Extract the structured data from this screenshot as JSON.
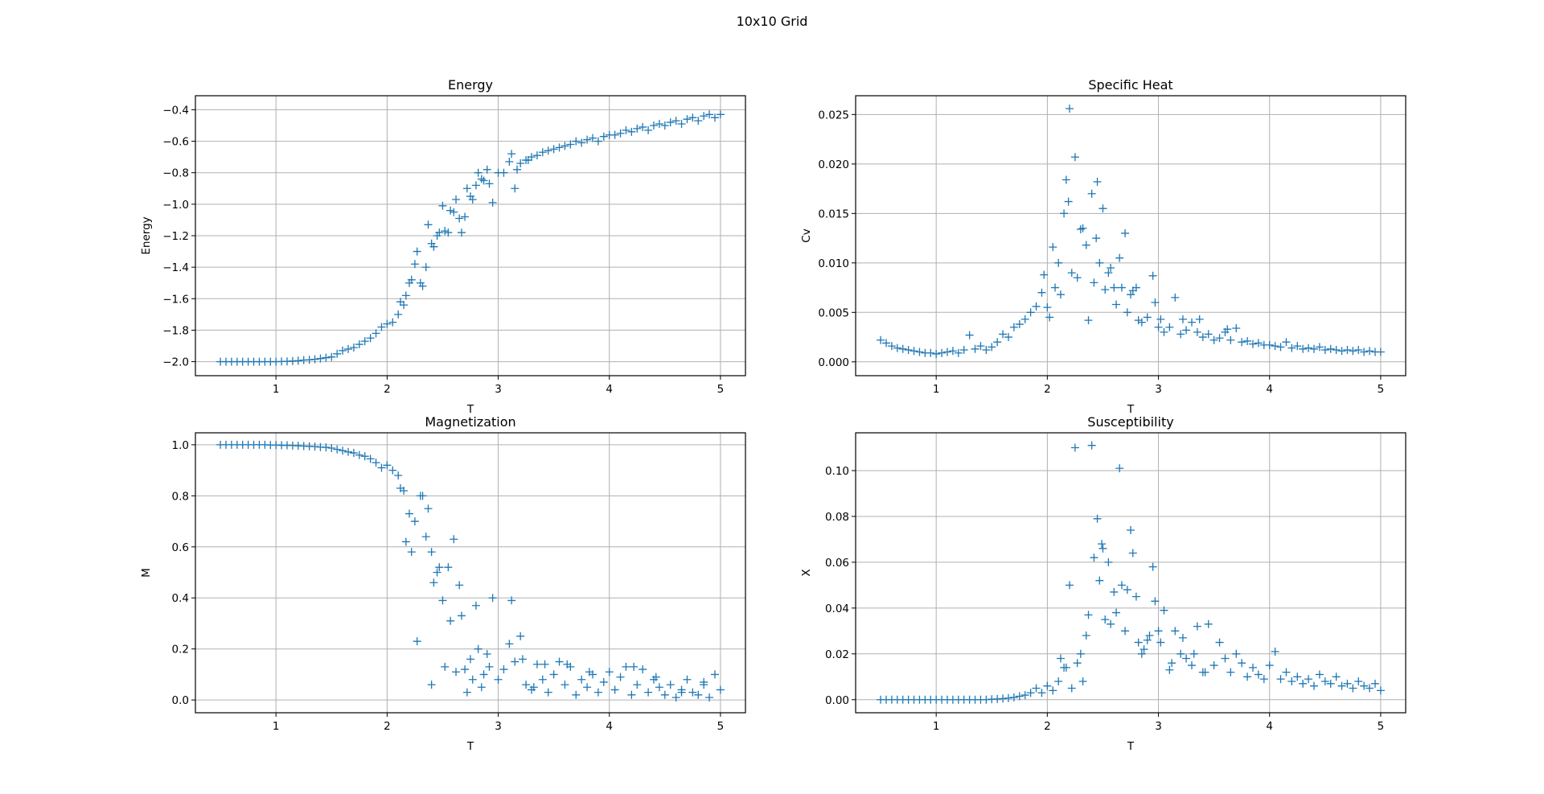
{
  "figure": {
    "suptitle": "10x10 Grid",
    "marker_color": "#1f77b4",
    "grid_color": "#b0b0b0",
    "marker": "plus"
  },
  "chart_data": [
    {
      "type": "scatter",
      "title": "Energy",
      "xlabel": "T",
      "ylabel": "Energy",
      "xlim": [
        0.275,
        5.225
      ],
      "ylim": [
        -2.089,
        -0.311
      ],
      "grid": true,
      "xticks": [
        1,
        2,
        3,
        4,
        5
      ],
      "xtick_labels": [
        "1",
        "2",
        "3",
        "4",
        "5"
      ],
      "yticks": [
        -2.0,
        -1.8,
        -1.6,
        -1.4,
        -1.2,
        -1.0,
        -0.8,
        -0.6,
        -0.4
      ],
      "ytick_labels": [
        "−2.0",
        "−1.8",
        "−1.6",
        "−1.4",
        "−1.2",
        "−1.0",
        "−0.8",
        "−0.6",
        "−0.4"
      ],
      "y": [
        -2.0,
        -2.0,
        -2.0,
        -2.0,
        -2.0,
        -2.0,
        -2.0,
        -2.0,
        -2.0,
        -2.0,
        -2.0,
        -1.999,
        -1.998,
        -1.996,
        -1.994,
        -1.99,
        -1.988,
        -1.985,
        -1.98,
        -1.975,
        -1.97,
        -1.95,
        -1.93,
        -1.92,
        -1.91,
        -1.89,
        -1.87,
        -1.85,
        -1.82,
        -1.78,
        -1.76,
        -1.75,
        -1.7,
        -1.64,
        -1.5,
        -1.38,
        -1.5,
        -1.4,
        -1.25,
        -1.2,
        -1.01,
        -1.18,
        -1.05,
        -1.09,
        -1.08,
        -0.95,
        -0.88,
        -0.84,
        -0.78,
        -0.99,
        -0.8,
        -0.8,
        -0.73,
        -0.9,
        -0.74,
        -0.72,
        -0.7,
        -0.69,
        -0.67,
        -0.66,
        -0.65,
        -0.64,
        -0.63,
        -0.62,
        -0.6,
        -0.61,
        -0.59,
        -0.58,
        -0.6,
        -0.57,
        -0.56,
        -0.56,
        -0.55,
        -0.53,
        -0.54,
        -0.52,
        -0.51,
        -0.53,
        -0.5,
        -0.49,
        -0.5,
        -0.48,
        -0.47,
        -0.49,
        -0.46,
        -0.45,
        -0.47,
        -0.44,
        -0.43,
        -0.45,
        -0.43
      ],
      "extra_points": [
        [
          2.12,
          -1.62
        ],
        [
          2.17,
          -1.58
        ],
        [
          2.22,
          -1.48
        ],
        [
          2.27,
          -1.3
        ],
        [
          2.32,
          -1.52
        ],
        [
          2.37,
          -1.13
        ],
        [
          2.42,
          -1.27
        ],
        [
          2.47,
          -1.18
        ],
        [
          2.52,
          -1.17
        ],
        [
          2.57,
          -1.04
        ],
        [
          2.62,
          -0.97
        ],
        [
          2.67,
          -1.18
        ],
        [
          2.72,
          -0.9
        ],
        [
          2.77,
          -0.97
        ],
        [
          2.82,
          -0.8
        ],
        [
          2.87,
          -0.85
        ],
        [
          2.92,
          -0.87
        ],
        [
          3.12,
          -0.68
        ],
        [
          3.17,
          -0.78
        ],
        [
          3.27,
          -0.72
        ]
      ]
    },
    {
      "type": "scatter",
      "title": "Specific Heat",
      "xlabel": "T",
      "ylabel": "Cv",
      "xlim": [
        0.275,
        5.225
      ],
      "ylim": [
        -0.0014,
        0.0269
      ],
      "grid": true,
      "xticks": [
        1,
        2,
        3,
        4,
        5
      ],
      "xtick_labels": [
        "1",
        "2",
        "3",
        "4",
        "5"
      ],
      "yticks": [
        0,
        0.005,
        0.01,
        0.015,
        0.02,
        0.025
      ],
      "ytick_labels": [
        "0.000",
        "0.005",
        "0.010",
        "0.015",
        "0.020",
        "0.025"
      ],
      "y": [
        0.0022,
        0.0019,
        0.0016,
        0.0014,
        0.0013,
        0.0012,
        0.0011,
        0.001,
        0.0009,
        0.0009,
        0.0008,
        0.0009,
        0.001,
        0.0011,
        0.0009,
        0.0012,
        0.0027,
        0.0013,
        0.0016,
        0.0012,
        0.0015,
        0.002,
        0.0028,
        0.0025,
        0.0035,
        0.0038,
        0.0043,
        0.005,
        0.0056,
        0.007,
        0.0055,
        0.0116,
        0.01,
        0.015,
        0.0256,
        0.0207,
        0.0134,
        0.0118,
        0.017,
        0.0182,
        0.0155,
        0.009,
        0.0075,
        0.0105,
        0.013,
        0.0068,
        0.0075,
        0.004,
        0.0045,
        0.0087,
        0.0035,
        0.003,
        0.0035,
        0.0065,
        0.0028,
        0.0032,
        0.004,
        0.003,
        0.0025,
        0.0028,
        0.0022,
        0.0024,
        0.003,
        0.0022,
        0.0034,
        0.002,
        0.0021,
        0.0018,
        0.0019,
        0.0017,
        0.0017,
        0.0016,
        0.0015,
        0.002,
        0.0014,
        0.0016,
        0.0013,
        0.0014,
        0.0013,
        0.0015,
        0.0012,
        0.0013,
        0.0012,
        0.0011,
        0.0012,
        0.0011,
        0.0012,
        0.001,
        0.0011,
        0.001,
        0.001
      ],
      "extra_points": [
        [
          1.97,
          0.0088
        ],
        [
          2.02,
          0.0045
        ],
        [
          2.07,
          0.0075
        ],
        [
          2.12,
          0.0068
        ],
        [
          2.17,
          0.0184
        ],
        [
          2.19,
          0.0162
        ],
        [
          2.22,
          0.009
        ],
        [
          2.27,
          0.0085
        ],
        [
          2.32,
          0.0135
        ],
        [
          2.37,
          0.0042
        ],
        [
          2.42,
          0.008
        ],
        [
          2.44,
          0.0125
        ],
        [
          2.47,
          0.01
        ],
        [
          2.52,
          0.0073
        ],
        [
          2.57,
          0.0095
        ],
        [
          2.62,
          0.0058
        ],
        [
          2.67,
          0.0075
        ],
        [
          2.72,
          0.005
        ],
        [
          2.77,
          0.0072
        ],
        [
          2.82,
          0.0042
        ],
        [
          2.97,
          0.006
        ],
        [
          3.02,
          0.0043
        ],
        [
          3.22,
          0.0043
        ],
        [
          3.37,
          0.0043
        ],
        [
          3.62,
          0.0033
        ]
      ]
    },
    {
      "type": "scatter",
      "title": "Magnetization",
      "xlabel": "T",
      "ylabel": "M",
      "xlim": [
        0.275,
        5.225
      ],
      "ylim": [
        -0.05,
        1.047
      ],
      "grid": true,
      "xticks": [
        1,
        2,
        3,
        4,
        5
      ],
      "xtick_labels": [
        "1",
        "2",
        "3",
        "4",
        "5"
      ],
      "yticks": [
        0,
        0.2,
        0.4,
        0.6,
        0.8,
        1.0
      ],
      "ytick_labels": [
        "0.0",
        "0.2",
        "0.4",
        "0.6",
        "0.8",
        "1.0"
      ],
      "y": [
        1.0,
        1.0,
        1.0,
        1.0,
        1.0,
        1.0,
        1.0,
        1.0,
        1.0,
        0.999,
        0.999,
        0.998,
        0.998,
        0.997,
        0.996,
        0.995,
        0.994,
        0.993,
        0.991,
        0.99,
        0.987,
        0.982,
        0.977,
        0.972,
        0.968,
        0.96,
        0.955,
        0.945,
        0.93,
        0.91,
        0.92,
        0.9,
        0.88,
        0.82,
        0.73,
        0.7,
        0.8,
        0.64,
        0.58,
        0.5,
        0.39,
        0.52,
        0.63,
        0.45,
        0.12,
        0.16,
        0.37,
        0.05,
        0.18,
        0.4,
        0.08,
        0.12,
        0.22,
        0.15,
        0.25,
        0.06,
        0.04,
        0.14,
        0.08,
        0.03,
        0.1,
        0.15,
        0.06,
        0.13,
        0.02,
        0.08,
        0.05,
        0.1,
        0.03,
        0.07,
        0.11,
        0.04,
        0.09,
        0.13,
        0.02,
        0.06,
        0.12,
        0.03,
        0.08,
        0.05,
        0.02,
        0.06,
        0.01,
        0.04,
        0.08,
        0.03,
        0.02,
        0.06,
        0.01,
        0.1,
        0.04
      ],
      "extra_points": [
        [
          2.12,
          0.83
        ],
        [
          2.17,
          0.62
        ],
        [
          2.22,
          0.58
        ],
        [
          2.27,
          0.23
        ],
        [
          2.32,
          0.8
        ],
        [
          2.37,
          0.75
        ],
        [
          2.4,
          0.06
        ],
        [
          2.42,
          0.46
        ],
        [
          2.47,
          0.52
        ],
        [
          2.52,
          0.13
        ],
        [
          2.57,
          0.31
        ],
        [
          2.62,
          0.11
        ],
        [
          2.67,
          0.33
        ],
        [
          2.72,
          0.03
        ],
        [
          2.77,
          0.08
        ],
        [
          2.82,
          0.2
        ],
        [
          2.87,
          0.1
        ],
        [
          2.92,
          0.13
        ],
        [
          3.12,
          0.39
        ],
        [
          3.22,
          0.16
        ],
        [
          3.32,
          0.05
        ],
        [
          3.42,
          0.14
        ],
        [
          3.62,
          0.14
        ],
        [
          3.82,
          0.11
        ],
        [
          4.22,
          0.13
        ],
        [
          4.42,
          0.09
        ],
        [
          4.65,
          0.03
        ],
        [
          4.85,
          0.07
        ]
      ]
    },
    {
      "type": "scatter",
      "title": "Susceptibility",
      "xlabel": "T",
      "ylabel": "X",
      "xlim": [
        0.275,
        5.225
      ],
      "ylim": [
        -0.0057,
        0.1165
      ],
      "grid": true,
      "xticks": [
        1,
        2,
        3,
        4,
        5
      ],
      "xtick_labels": [
        "1",
        "2",
        "3",
        "4",
        "5"
      ],
      "yticks": [
        0,
        0.02,
        0.04,
        0.06,
        0.08,
        0.1
      ],
      "ytick_labels": [
        "0.00",
        "0.02",
        "0.04",
        "0.06",
        "0.08",
        "0.10"
      ],
      "y": [
        0,
        0,
        0,
        0,
        0,
        0,
        0,
        0,
        0,
        0,
        0,
        0,
        0,
        0,
        0,
        0,
        0,
        0,
        0,
        0,
        0.0002,
        0.0003,
        0.0005,
        0.0007,
        0.001,
        0.0015,
        0.002,
        0.003,
        0.005,
        0.003,
        0.006,
        0.004,
        0.008,
        0.014,
        0.05,
        0.11,
        0.02,
        0.028,
        0.111,
        0.079,
        0.066,
        0.06,
        0.047,
        0.101,
        0.03,
        0.074,
        0.045,
        0.02,
        0.026,
        0.058,
        0.03,
        0.039,
        0.013,
        0.03,
        0.02,
        0.018,
        0.015,
        0.032,
        0.012,
        0.033,
        0.015,
        0.025,
        0.018,
        0.012,
        0.02,
        0.016,
        0.01,
        0.014,
        0.011,
        0.009,
        0.015,
        0.021,
        0.009,
        0.012,
        0.008,
        0.01,
        0.007,
        0.009,
        0.006,
        0.011,
        0.008,
        0.007,
        0.01,
        0.006,
        0.007,
        0.005,
        0.008,
        0.006,
        0.005,
        0.007,
        0.004
      ],
      "extra_points": [
        [
          2.12,
          0.018
        ],
        [
          2.17,
          0.014
        ],
        [
          2.22,
          0.005
        ],
        [
          2.27,
          0.016
        ],
        [
          2.32,
          0.008
        ],
        [
          2.37,
          0.037
        ],
        [
          2.42,
          0.062
        ],
        [
          2.47,
          0.052
        ],
        [
          2.49,
          0.068
        ],
        [
          2.52,
          0.035
        ],
        [
          2.57,
          0.033
        ],
        [
          2.62,
          0.038
        ],
        [
          2.67,
          0.05
        ],
        [
          2.72,
          0.048
        ],
        [
          2.77,
          0.064
        ],
        [
          2.82,
          0.025
        ],
        [
          2.87,
          0.022
        ],
        [
          2.92,
          0.028
        ],
        [
          2.97,
          0.043
        ],
        [
          3.02,
          0.025
        ],
        [
          3.12,
          0.016
        ],
        [
          3.22,
          0.027
        ],
        [
          3.32,
          0.02
        ],
        [
          3.42,
          0.012
        ]
      ]
    }
  ]
}
